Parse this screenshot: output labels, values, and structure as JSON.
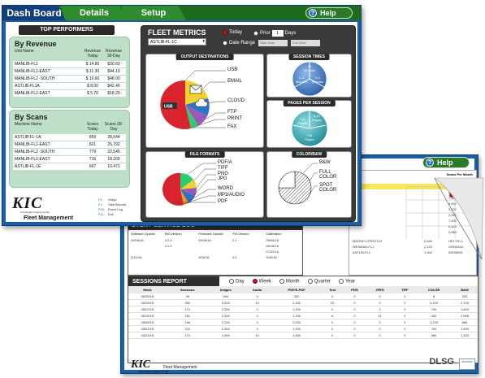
{
  "front": {
    "tabs": {
      "dashboard": "Dash Board",
      "details": "Details",
      "setup": "Setup"
    },
    "help": "Help",
    "top_performers": {
      "title": "TOP PERFORMERS",
      "by_revenue": {
        "heading": "By Revenue",
        "col_name": "Unit Name",
        "col_today": "Revenue Today",
        "col_30": "Revenue 30-Day",
        "rows": [
          {
            "name": "MANLIB-FL1",
            "today": "$ 14.80",
            "d30": "$30.60"
          },
          {
            "name": "MANLIB-FL1-EAST",
            "today": "$ 11.30",
            "d30": "$44.10"
          },
          {
            "name": "MANLIB-FL2 -SOUTH",
            "today": "$ 10.60",
            "d30": "$48.00"
          },
          {
            "name": "ASTLIB-FL1A",
            "today": "$ 8.00",
            "d30": "$42.40"
          },
          {
            "name": "MANLIB-FL2-EAST",
            "today": "$ 5.70",
            "d30": "$18.20"
          }
        ]
      },
      "by_scans": {
        "heading": "By Scans",
        "col_name": "Machine Name",
        "col_today": "Scans Today",
        "col_30": "Scans 30-Day",
        "rows": [
          {
            "name": "ASTLIB-FL-1A",
            "today": "859",
            "d30": "28,644"
          },
          {
            "name": "MANLIB-FL1-EAST",
            "today": "821",
            "d30": "25,792"
          },
          {
            "name": "MANLIB-FL2 -SOUTH",
            "today": "779",
            "d30": "22,545"
          },
          {
            "name": "MANLIB-FL2-EAST",
            "today": "715",
            "d30": "18,209"
          },
          {
            "name": "ASTLIB-FL-1E",
            "today": "667",
            "d30": "10,471"
          }
        ]
      }
    },
    "logo": {
      "name": "KIC",
      "sub": "Knowledge Imaging Center",
      "product": "Fleet Management"
    },
    "fkeys": [
      {
        "key": "F1:",
        "label": "Setup"
      },
      {
        "key": "F2:",
        "label": "Stat Reports"
      },
      {
        "key": "F10:",
        "label": "Event Log"
      },
      {
        "key": "F11:",
        "label": "Exit"
      }
    ],
    "fleet_metrics": {
      "title": "FLEET METRICS",
      "selected_unit": "ASTLIB-FL-1C",
      "today": "Today",
      "prior": "Prior",
      "prior_days": "1",
      "days": "Days",
      "date_range": "Date Range",
      "start_placeholder": "Start Date",
      "end_placeholder": "End Date",
      "output_destinations": {
        "title": "OUTPUT DESTINATIONS",
        "usb_label": "USB",
        "labels": [
          "USB",
          "EMAIL",
          "CLOUD",
          "FTP",
          "PRINT",
          "FAX"
        ]
      },
      "session_times": {
        "title": "SESSION TIMES",
        "top": "+8 Minutes",
        "left": "2-4 Minutes",
        "right": "4-6 Minutes"
      },
      "pages_per_session": {
        "title": "PAGES PER SESSION",
        "top": "5-10 Pages",
        "left": "1-5 Pages",
        "bottom": "+30 Pages"
      },
      "file_formats": {
        "title": "FILE FORMATS",
        "labels": [
          "PDF/A",
          "TIFF",
          "PNG",
          "JPG",
          "WORD",
          "MP3/AUDIO",
          "PDF"
        ]
      },
      "color_bw": {
        "title": "COLOR/B&W",
        "labels": [
          "B&W",
          "FULL COLOR",
          "SPOT COLOR"
        ]
      }
    }
  },
  "back": {
    "help": "Help",
    "scans_header": "Scans Per Month",
    "scans_rows": [
      {
        "name": "",
        "v": "8,975",
        "hl": false
      },
      {
        "name": "",
        "v": "10,471",
        "hl": true
      },
      {
        "name": "",
        "v": "8,975",
        "hl": false
      },
      {
        "name": "",
        "v": "7,552",
        "hl": false
      },
      {
        "name": "",
        "v": "6,642",
        "hl": false
      },
      {
        "name": "",
        "v": "3,022",
        "hl": false
      },
      {
        "name": "",
        "v": "2,847",
        "hl": false
      },
      {
        "name": "",
        "v": "7,400",
        "hl": false
      },
      {
        "name": "",
        "v": "6,629",
        "hl": false
      },
      {
        "name": "",
        "v": "3,580",
        "hl": false
      }
    ],
    "detail_rows": [
      {
        "name": "MDGHP-CPRST3-R",
        "a": "2,640",
        "b": "HP1700-1"
      },
      {
        "name": "WESMAN-FL1",
        "a": "2,120",
        "b": "GRN4334"
      },
      {
        "name": "ASTLIB-FL1",
        "a": "1,942",
        "b": "WX56094"
      }
    ],
    "event_log": {
      "title": "EVENT SERVICE LOG",
      "cols": [
        "Software Update",
        "SW-Version",
        "Firmware Update",
        "FW-Version",
        "Calibration"
      ],
      "rows": [
        [
          "05/08/16",
          "4.2.0",
          "05/08/16",
          "2.1",
          "05/08/16"
        ],
        [
          "",
          "4.1.9",
          "",
          "",
          "06/18/16"
        ],
        [
          "",
          "",
          "",
          "",
          "07/22/16"
        ],
        [
          "3/10/16",
          "",
          "3/09/16",
          "2.0",
          "3/09/16"
        ]
      ]
    },
    "sessions": {
      "title": "SESSIONS REPORT",
      "options": [
        "Day",
        "Week",
        "Month",
        "Quarter",
        "Year"
      ],
      "selected": "Week",
      "cols": [
        "Week",
        "Sessions",
        "Images",
        "Audio",
        "PDF/S-PDF",
        "Text",
        "PNG",
        "JPEG",
        "TIFF",
        "COLOR",
        "B&W"
      ],
      "rows": [
        [
          "06/05/16",
          "36",
          "500",
          "0",
          "300",
          "0",
          "0",
          "0",
          "0",
          "8",
          "200"
        ],
        [
          "05/29/16",
          "350",
          "3,200",
          "10",
          "2,400",
          "20",
          "0",
          "0",
          "0",
          "1,100",
          "2,100"
        ],
        [
          "05/22/16",
          "170",
          "2,300",
          "0",
          "1,900",
          "0",
          "0",
          "0",
          "0",
          "700",
          "1,600"
        ],
        [
          "05/15/16",
          "181",
          "2,300",
          "0",
          "2,200",
          "6",
          "0",
          "21",
          "0",
          "352",
          "2,066"
        ],
        [
          "05/08/16",
          "196",
          "2,100",
          "0",
          "2,000",
          "0",
          "0",
          "0",
          "0",
          "1,220",
          "880"
        ],
        [
          "05/01/16",
          "210",
          "2,350",
          "0",
          "1,900",
          "0",
          "0",
          "0",
          "0",
          "760",
          "1,590"
        ],
        [
          "04/24/16",
          "170",
          "1,900",
          "10",
          "1,600",
          "0",
          "0",
          "0",
          "0",
          "580",
          "1,320"
        ]
      ]
    },
    "footer": {
      "logo": "KIC",
      "sub": "Knowledge Imaging Center",
      "product": "Fleet Management",
      "partner": "DLSG",
      "access": "Access"
    }
  },
  "colors": {
    "tab_green": "#2e8b2e",
    "tab_dark": "#123f7a",
    "frame_blue": "#1a5ea8",
    "panel_green": "#bfe0c8",
    "selected_radio": "#c3121f"
  }
}
